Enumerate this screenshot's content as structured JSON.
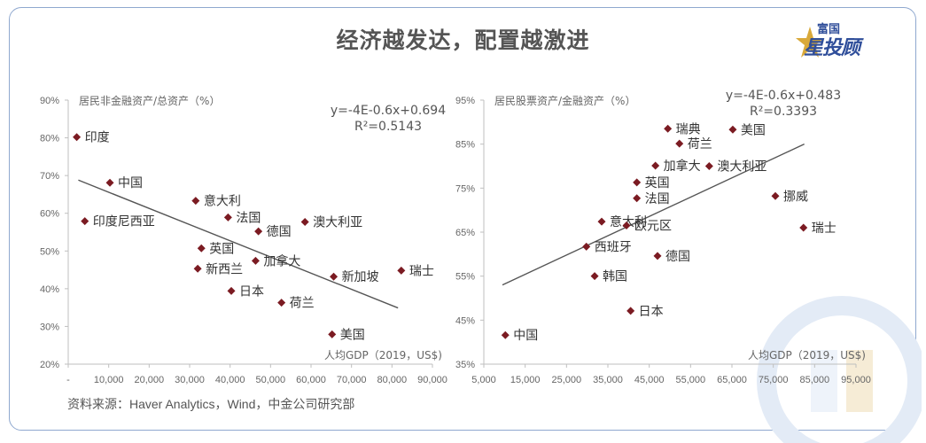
{
  "title": "经济越发达，配置越激进",
  "logo": {
    "top_text": "富国",
    "main_text": "星投顾",
    "icon": "gold-star-icon"
  },
  "source": "资料来源：Haver Analytics，Wind，中金公司研究部",
  "colors": {
    "marker": "#7b1b22",
    "trend": "#555555",
    "axis": "#bfbfbf",
    "title": "#555555",
    "border": "#8fa8cf"
  },
  "chart_data": [
    {
      "type": "scatter",
      "ylabel": "居民非金融资产/总资产（%）",
      "xlabel": "人均GDP（2019，US$)",
      "equation": "y=-4E-0.6x+0.694",
      "r2": "R²=0.5143",
      "xlim": [
        0,
        90000
      ],
      "ylim": [
        20,
        90
      ],
      "x_ticks": [
        "-",
        "10,000",
        "20,000",
        "30,000",
        "40,000",
        "50,000",
        "60,000",
        "70,000",
        "80,000",
        "90,000"
      ],
      "y_ticks": [
        "20%",
        "30%",
        "40%",
        "50%",
        "60%",
        "70%",
        "80%",
        "90%"
      ],
      "trend": {
        "x": [
          2500,
          81500
        ],
        "y": [
          68.8,
          34.9
        ]
      },
      "points": [
        {
          "label": "印度",
          "x": 2100,
          "y": 80.2
        },
        {
          "label": "中国",
          "x": 10300,
          "y": 68.1
        },
        {
          "label": "印度尼西亚",
          "x": 4100,
          "y": 57.9
        },
        {
          "label": "意大利",
          "x": 31500,
          "y": 63.3
        },
        {
          "label": "法国",
          "x": 39500,
          "y": 58.9
        },
        {
          "label": "澳大利亚",
          "x": 58500,
          "y": 57.7
        },
        {
          "label": "德国",
          "x": 47000,
          "y": 55.2
        },
        {
          "label": "英国",
          "x": 32900,
          "y": 50.7
        },
        {
          "label": "新西兰",
          "x": 32000,
          "y": 45.3
        },
        {
          "label": "加拿大",
          "x": 46300,
          "y": 47.4
        },
        {
          "label": "新加坡",
          "x": 65600,
          "y": 43.2
        },
        {
          "label": "瑞士",
          "x": 82300,
          "y": 44.8
        },
        {
          "label": "日本",
          "x": 40300,
          "y": 39.4
        },
        {
          "label": "荷兰",
          "x": 52700,
          "y": 36.3
        },
        {
          "label": "美国",
          "x": 65200,
          "y": 27.9
        }
      ]
    },
    {
      "type": "scatter",
      "ylabel": "居民股票资产/金融资产（%）",
      "xlabel": "人均GDP（2019，US$)",
      "equation": "y=-4E-0.6x+0.483",
      "r2": "R²=0.3393",
      "xlim": [
        5000,
        95000
      ],
      "ylim": [
        35,
        95
      ],
      "x_ticks": [
        "5,000",
        "15,000",
        "25,000",
        "35,000",
        "45,000",
        "55,000",
        "65,000",
        "75,000",
        "85,000",
        "95,000"
      ],
      "y_ticks": [
        "35%",
        "45%",
        "55%",
        "65%",
        "75%",
        "85%",
        "95%"
      ],
      "trend": {
        "x": [
          9500,
          82500
        ],
        "y": [
          53.0,
          85.0
        ]
      },
      "points": [
        {
          "label": "瑞典",
          "x": 49500,
          "y": 88.5
        },
        {
          "label": "美国",
          "x": 65200,
          "y": 88.3
        },
        {
          "label": "荷兰",
          "x": 52300,
          "y": 85.1
        },
        {
          "label": "加拿大",
          "x": 46500,
          "y": 80.1
        },
        {
          "label": "澳大利亚",
          "x": 59500,
          "y": 80.0
        },
        {
          "label": "英国",
          "x": 42000,
          "y": 76.3
        },
        {
          "label": "法国",
          "x": 42000,
          "y": 72.7
        },
        {
          "label": "挪威",
          "x": 75500,
          "y": 73.2
        },
        {
          "label": "意大利",
          "x": 33500,
          "y": 67.4
        },
        {
          "label": "欧元区",
          "x": 39500,
          "y": 66.5
        },
        {
          "label": "瑞士",
          "x": 82300,
          "y": 66.0
        },
        {
          "label": "西班牙",
          "x": 29800,
          "y": 61.7
        },
        {
          "label": "德国",
          "x": 47000,
          "y": 59.6
        },
        {
          "label": "韩国",
          "x": 31800,
          "y": 55.0
        },
        {
          "label": "日本",
          "x": 40500,
          "y": 47.1
        },
        {
          "label": "中国",
          "x": 10200,
          "y": 41.6
        }
      ]
    }
  ]
}
